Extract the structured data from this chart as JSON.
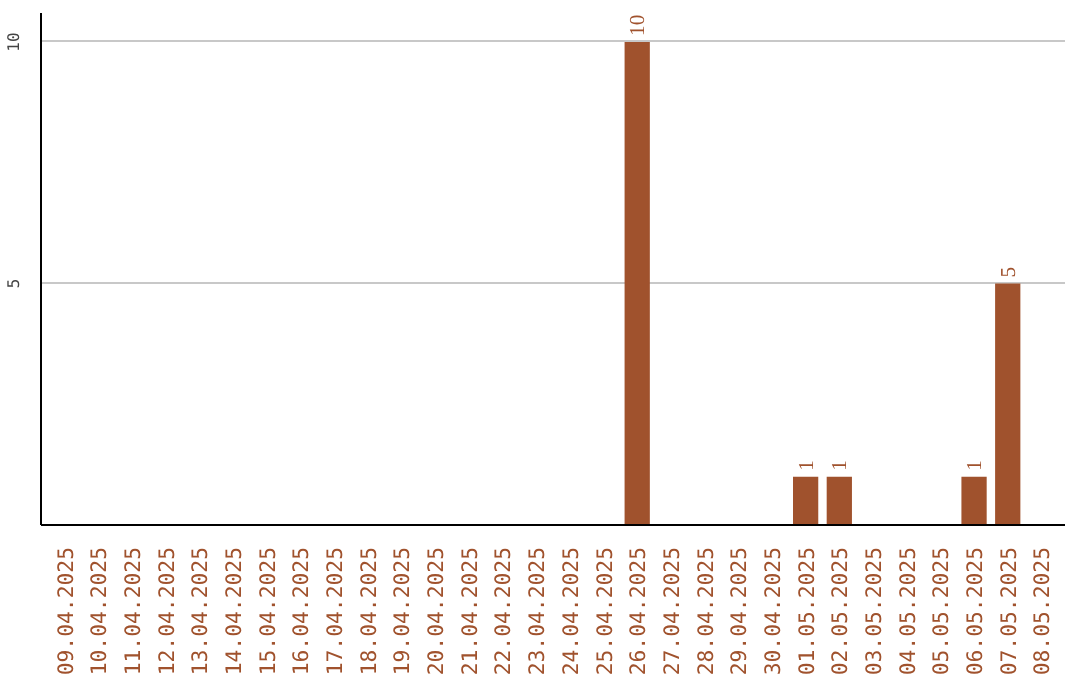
{
  "chart_data": {
    "type": "bar",
    "categories": [
      "09.04.2025",
      "10.04.2025",
      "11.04.2025",
      "12.04.2025",
      "13.04.2025",
      "14.04.2025",
      "15.04.2025",
      "16.04.2025",
      "17.04.2025",
      "18.04.2025",
      "19.04.2025",
      "20.04.2025",
      "21.04.2025",
      "22.04.2025",
      "23.04.2025",
      "24.04.2025",
      "25.04.2025",
      "26.04.2025",
      "27.04.2025",
      "28.04.2025",
      "29.04.2025",
      "30.04.2025",
      "01.05.2025",
      "02.05.2025",
      "03.05.2025",
      "04.05.2025",
      "05.05.2025",
      "06.05.2025",
      "07.05.2025",
      "08.05.2025"
    ],
    "values": [
      0,
      0,
      0,
      0,
      0,
      0,
      0,
      0,
      0,
      0,
      0,
      0,
      0,
      0,
      0,
      0,
      0,
      10,
      0,
      0,
      0,
      0,
      1,
      1,
      0,
      0,
      0,
      1,
      5,
      0
    ],
    "value_labels": [
      null,
      null,
      null,
      null,
      null,
      null,
      null,
      null,
      null,
      null,
      null,
      null,
      null,
      null,
      null,
      null,
      null,
      "10",
      null,
      null,
      null,
      null,
      "1",
      "1",
      null,
      null,
      null,
      "1",
      "5",
      null
    ],
    "color": "#a0522d",
    "ylim": [
      0,
      10.6
    ],
    "yticks": [
      5,
      10
    ],
    "grid": "y"
  }
}
